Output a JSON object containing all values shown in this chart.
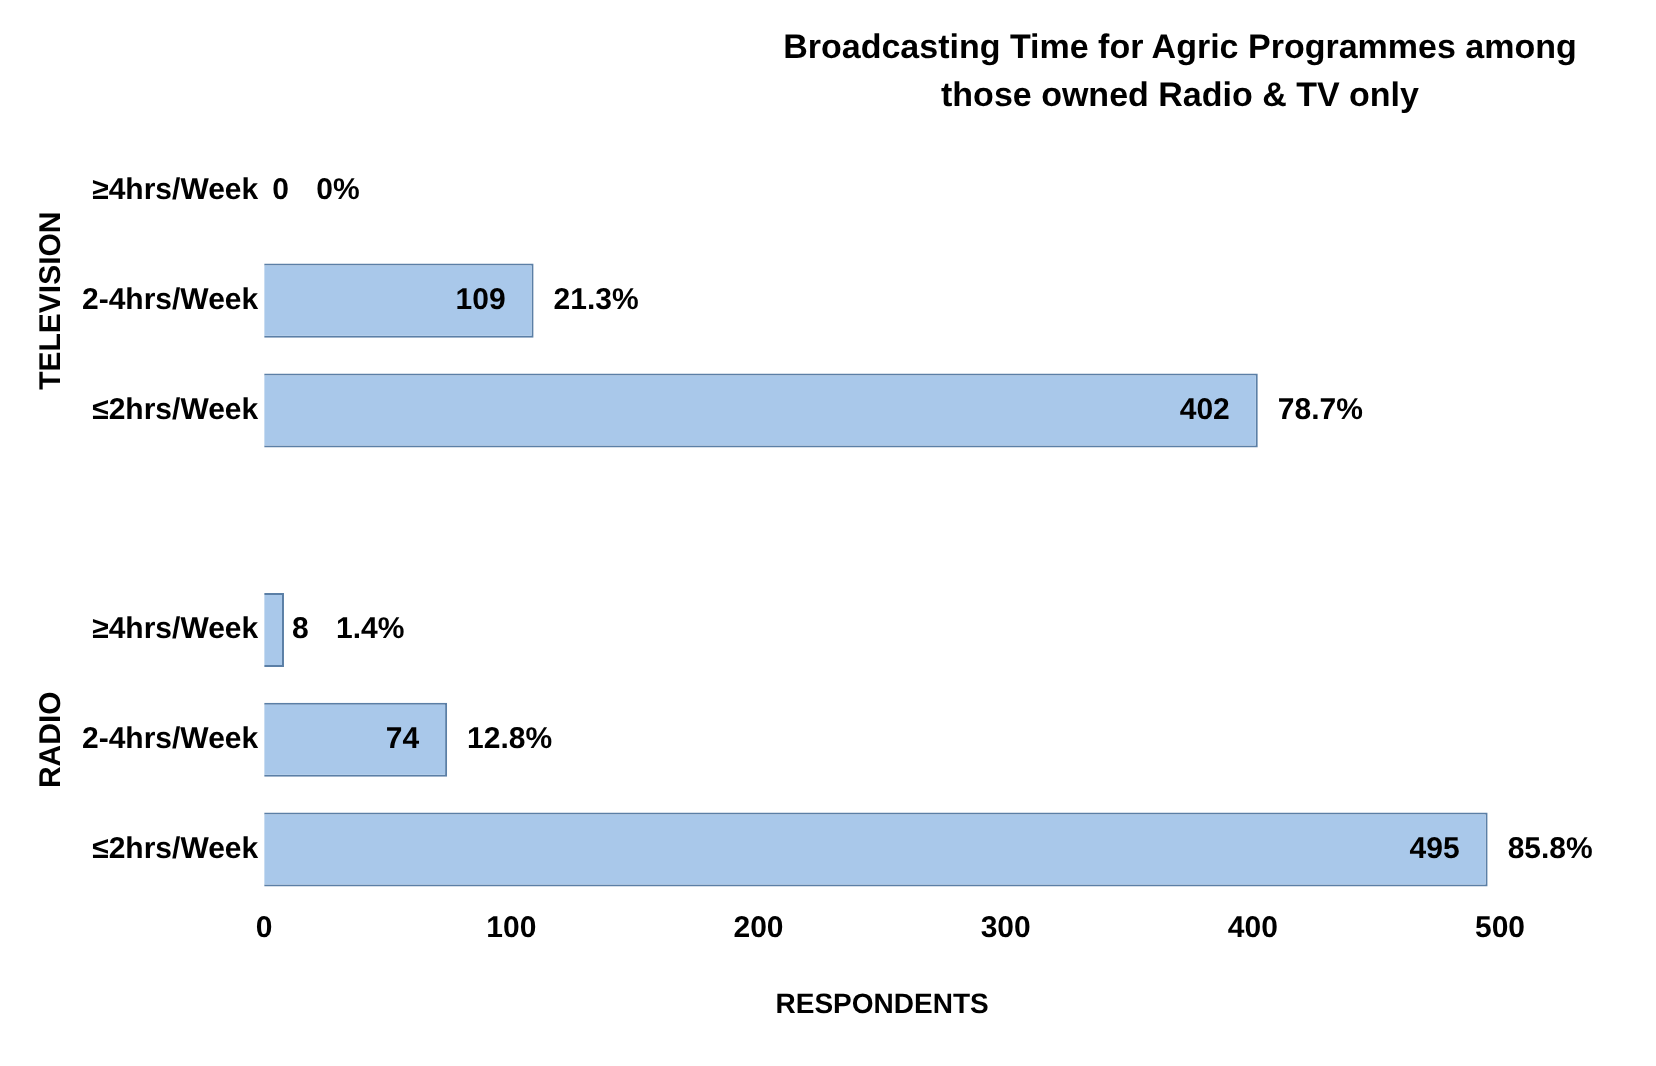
{
  "chart_data": {
    "type": "bar",
    "orientation": "horizontal",
    "title": "Broadcasting Time for Agric Programmes among those owned Radio & TV only",
    "xlabel": "RESPONDENTS",
    "categories": [
      "≥4hrs/Week",
      "2-4hrs/Week",
      "≤2hrs/Week",
      null,
      "≥4hrs/Week",
      "2-4hrs/Week",
      "≤2hrs/Week"
    ],
    "values": [
      0,
      109,
      402,
      null,
      8,
      74,
      495
    ],
    "value_labels": [
      "0",
      "109",
      "402",
      null,
      "8",
      "74",
      "495"
    ],
    "color": "#a9c8ea",
    "xlim": [
      0,
      500
    ],
    "xticks": [
      0,
      100,
      200,
      300,
      400,
      500
    ],
    "annotations": [
      "TELEVISION",
      "RADIO",
      "0%",
      "21.3%",
      "78.7%",
      "1.4%",
      "12.8%",
      "85.8%"
    ],
    "grid": false,
    "legend": false
  }
}
